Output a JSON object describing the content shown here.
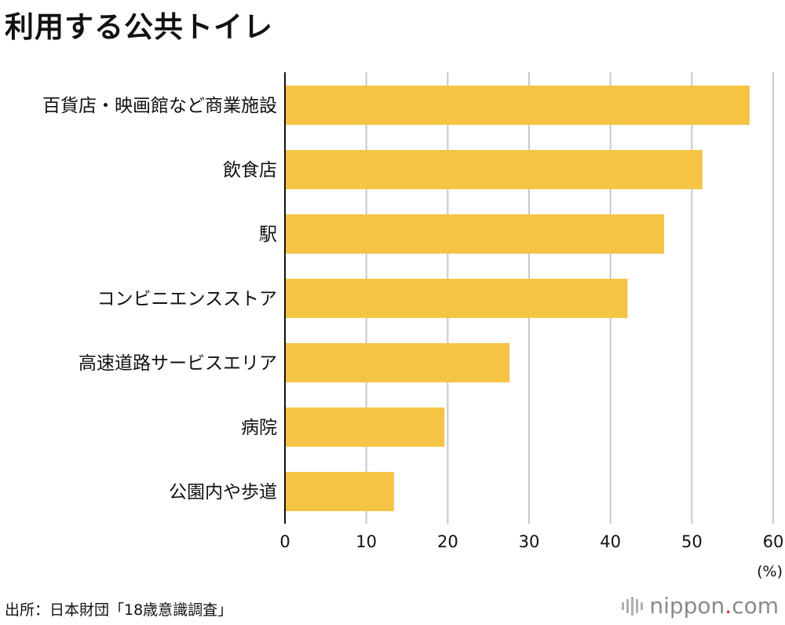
{
  "chart_data": {
    "type": "bar",
    "orientation": "horizontal",
    "title": "利用する公共トイレ",
    "categories": [
      "百貨店・映画館など商業施設",
      "飲食店",
      "駅",
      "コンビニエンスストア",
      "高速道路サービスエリア",
      "病院",
      "公園内や歩道"
    ],
    "values": [
      57.1,
      51.3,
      46.6,
      42.1,
      27.6,
      19.6,
      13.4
    ],
    "xlim": [
      0,
      60
    ],
    "xticks": [
      "0",
      "10",
      "20",
      "30",
      "40",
      "50",
      "60"
    ],
    "unit_label": "(%)",
    "grid": true,
    "bar_color": "#f5c445",
    "grid_color": "#c8c8c8"
  },
  "source": "出所：日本財団「18歳意識調査」",
  "logo": {
    "text_main": "nippon",
    "text_dot": ".",
    "text_suffix": "com",
    "accent_color": "#d9322b"
  }
}
